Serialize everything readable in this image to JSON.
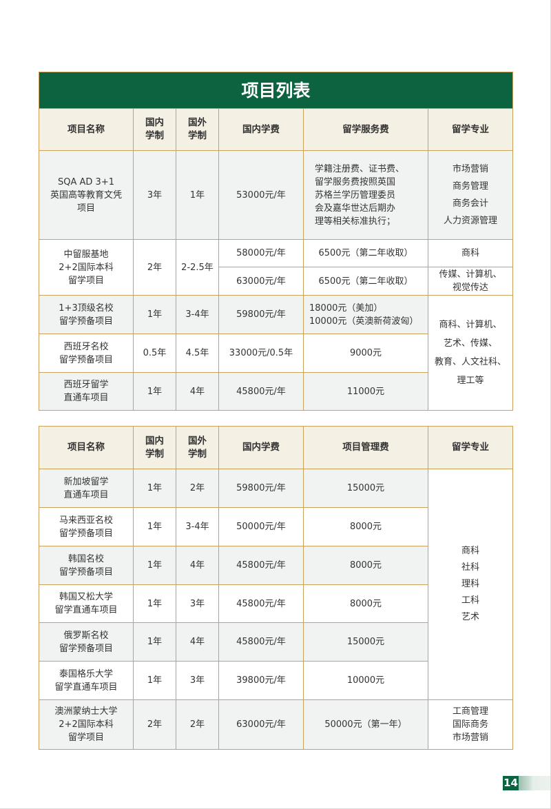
{
  "title": "项目列表",
  "table1": {
    "headers": [
      "项目名称",
      "国内\n学制",
      "国外\n学制",
      "国内学费",
      "留学服务费",
      "留学专业"
    ],
    "rows": [
      {
        "name": "SQA AD 3+1\n英国高等教育文凭\n项目",
        "domestic": "3年",
        "abroad": "1年",
        "fee": "53000元/年",
        "service": "学籍注册费、证书费、\n留学服务费按照英国\n苏格兰学历管理委员\n会及嘉华世达后期办\n理等相关标准执行；",
        "major": "市场营销\n商务管理\n商务会计\n人力资源管理"
      },
      {
        "name": "中留服基地\n2+2国际本科\n留学项目",
        "domestic": "2年",
        "abroad": "2-2.5年",
        "fee": "58000元/年",
        "service": "6500元（第二年收取）",
        "major": "商科",
        "fee2": "63000元/年",
        "service2": "6500元（第二年收取）",
        "major2": "传媒、计算机、\n视觉传达"
      },
      {
        "name": "1+3顶级名校\n留学预备项目",
        "domestic": "1年",
        "abroad": "3-4年",
        "fee": "59800元/年",
        "service": "18000元（美加）\n10000元（英澳新荷波匈）",
        "major": "商科、计算机、\n艺术、传媒、\n教育、人文社科、\n理工等"
      },
      {
        "name": "西班牙名校\n留学预备项目",
        "domestic": "0.5年",
        "abroad": "4.5年",
        "fee": "33000元/0.5年",
        "service": "9000元"
      },
      {
        "name": "西班牙留学\n直通车项目",
        "domestic": "1年",
        "abroad": "4年",
        "fee": "45800元/年",
        "service": "11000元"
      }
    ]
  },
  "table2": {
    "headers": [
      "项目名称",
      "国内\n学制",
      "国外\n学制",
      "国内学费",
      "项目管理费",
      "留学专业"
    ],
    "shared_major": "商科\n社科\n理科\n工科\n艺术",
    "rows": [
      {
        "name": "新加坡留学\n直通车项目",
        "domestic": "1年",
        "abroad": "2年",
        "fee": "59800元/年",
        "mgmt": "15000元"
      },
      {
        "name": "马来西亚名校\n留学预备项目",
        "domestic": "1年",
        "abroad": "3-4年",
        "fee": "50000元/年",
        "mgmt": "8000元"
      },
      {
        "name": "韩国名校\n留学预备项目",
        "domestic": "1年",
        "abroad": "4年",
        "fee": "45800元/年",
        "mgmt": "8000元"
      },
      {
        "name": "韩国又松大学\n留学直通车项目",
        "domestic": "1年",
        "abroad": "3年",
        "fee": "45800元/年",
        "mgmt": "8000元"
      },
      {
        "name": "俄罗斯名校\n留学预备项目",
        "domestic": "1年",
        "abroad": "4年",
        "fee": "45800元/年",
        "mgmt": "15000元"
      },
      {
        "name": "泰国格乐大学\n留学直通车项目",
        "domestic": "1年",
        "abroad": "3年",
        "fee": "39800元/年",
        "mgmt": "10000元"
      },
      {
        "name": "澳洲蒙纳士大学\n2+2国际本科\n留学项目",
        "domestic": "2年",
        "abroad": "2年",
        "fee": "63000元/年",
        "mgmt": "50000元（第一年）",
        "major": "工商管理\n国际商务\n市场营销"
      }
    ]
  },
  "page_number": "14",
  "colors": {
    "title_bg": "#0b6340",
    "border": "#c9a15a",
    "header_bg": "#f5f0e4",
    "row_alt": "#f1f3f2"
  }
}
